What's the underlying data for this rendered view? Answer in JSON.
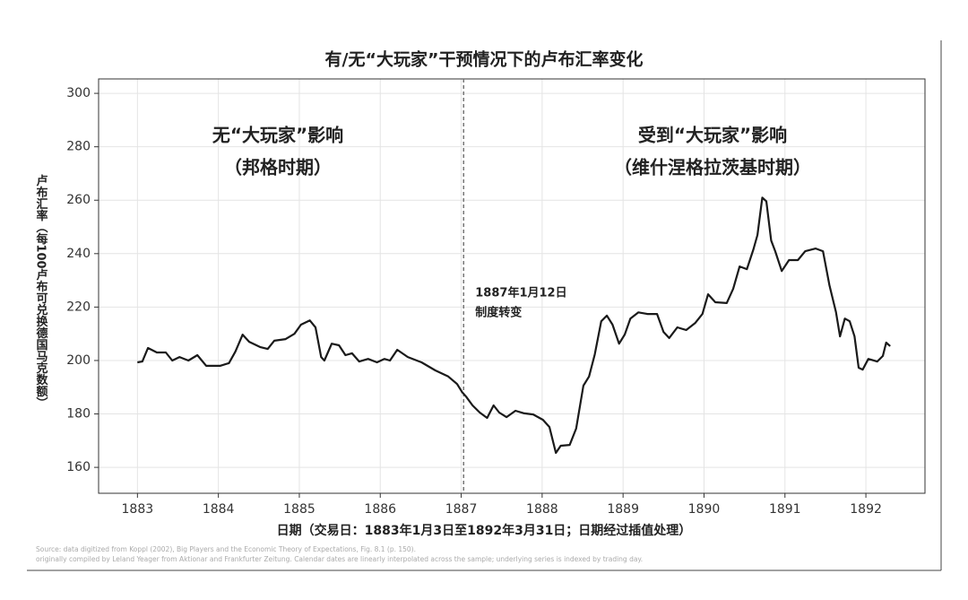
{
  "chart_data": {
    "type": "line",
    "title": "有/无“大玩家”干预情况下的卢布汇率变化",
    "x_label": "日期（交易日：1883年1月3日至1892年3月31日；日期经过插值处理）",
    "y_label": "卢布汇率（每100卢布可兑换德国马克数额）",
    "source": [
      "Source: data digitized from Koppl (2002), Big Players and the Economic Theory of Expectations, Fig. 8.1 (p. 150).",
      "originally compiled by Leland Yeager from Aktionar and Frankfurter Zeitung. Calendar dates are linearly interpolated across the sample; underlying series is indexed by trading day."
    ],
    "annotations": [
      {
        "lines": [
          "无“大玩家”影响",
          "（邦格时期）"
        ]
      },
      {
        "lines": [
          "受到“大玩家”影响",
          "（维什涅格拉茨基时期）"
        ]
      }
    ],
    "vline": {
      "x": 1887.03,
      "lines": [
        "1887年1月12日",
        "制度转变"
      ]
    },
    "color": "#1a1a1a",
    "grid": true,
    "xlim": [
      1882.52,
      1892.73
    ],
    "xticks": [
      1883,
      1884,
      1885,
      1886,
      1887,
      1888,
      1889,
      1890,
      1891,
      1892
    ],
    "ylim": [
      150.3,
      305.4
    ],
    "yticks": [
      160,
      180,
      200,
      220,
      240,
      260,
      280,
      300
    ],
    "x": [
      1883.0,
      1883.06,
      1883.13,
      1883.24,
      1883.35,
      1883.43,
      1883.52,
      1883.63,
      1883.74,
      1883.85,
      1884.02,
      1884.13,
      1884.21,
      1884.3,
      1884.38,
      1884.52,
      1884.61,
      1884.69,
      1884.83,
      1884.94,
      1885.02,
      1885.13,
      1885.2,
      1885.27,
      1885.31,
      1885.4,
      1885.49,
      1885.57,
      1885.65,
      1885.74,
      1885.85,
      1885.96,
      1886.05,
      1886.12,
      1886.21,
      1886.34,
      1886.51,
      1886.68,
      1886.84,
      1886.95,
      1887.01,
      1887.06,
      1887.14,
      1887.23,
      1887.32,
      1887.4,
      1887.47,
      1887.56,
      1887.67,
      1887.78,
      1887.89,
      1888.01,
      1888.09,
      1888.17,
      1888.23,
      1888.34,
      1888.42,
      1888.51,
      1888.58,
      1888.65,
      1888.73,
      1888.8,
      1888.87,
      1888.95,
      1889.02,
      1889.09,
      1889.19,
      1889.3,
      1889.42,
      1889.5,
      1889.57,
      1889.67,
      1889.78,
      1889.89,
      1889.98,
      1890.05,
      1890.14,
      1890.28,
      1890.36,
      1890.44,
      1890.53,
      1890.61,
      1890.66,
      1890.72,
      1890.77,
      1890.83,
      1890.88,
      1890.96,
      1891.05,
      1891.16,
      1891.25,
      1891.38,
      1891.47,
      1891.55,
      1891.63,
      1891.68,
      1891.74,
      1891.8,
      1891.86,
      1891.91,
      1891.96,
      1892.03,
      1892.14,
      1892.21,
      1892.25,
      1892.3
    ],
    "values": [
      199.3,
      199.6,
      204.7,
      203.0,
      203.0,
      200.0,
      201.3,
      200.0,
      202.0,
      198.0,
      198.0,
      199.0,
      203.3,
      209.7,
      207.0,
      205.0,
      204.3,
      207.4,
      208.0,
      210.0,
      213.4,
      215.0,
      212.4,
      201.3,
      200.0,
      206.3,
      205.7,
      202.0,
      202.7,
      199.6,
      200.6,
      199.3,
      200.6,
      200.0,
      204.0,
      201.3,
      199.3,
      196.3,
      194.0,
      191.2,
      188.2,
      186.5,
      183.2,
      180.5,
      178.5,
      183.2,
      180.5,
      178.8,
      181.2,
      180.2,
      179.8,
      177.8,
      175.1,
      165.4,
      168.1,
      168.4,
      174.5,
      190.6,
      194.0,
      202.3,
      214.7,
      216.8,
      213.4,
      206.3,
      209.7,
      215.7,
      218.0,
      217.4,
      217.4,
      210.7,
      208.4,
      212.4,
      211.4,
      214.0,
      217.4,
      224.8,
      221.8,
      221.5,
      226.8,
      235.2,
      234.2,
      241.6,
      247.0,
      261.0,
      259.6,
      244.9,
      240.9,
      233.5,
      237.6,
      237.6,
      240.9,
      241.9,
      240.9,
      228.2,
      218.1,
      209.0,
      215.7,
      214.7,
      209.0,
      197.3,
      196.6,
      200.6,
      199.6,
      201.7,
      206.7,
      205.4
    ]
  }
}
